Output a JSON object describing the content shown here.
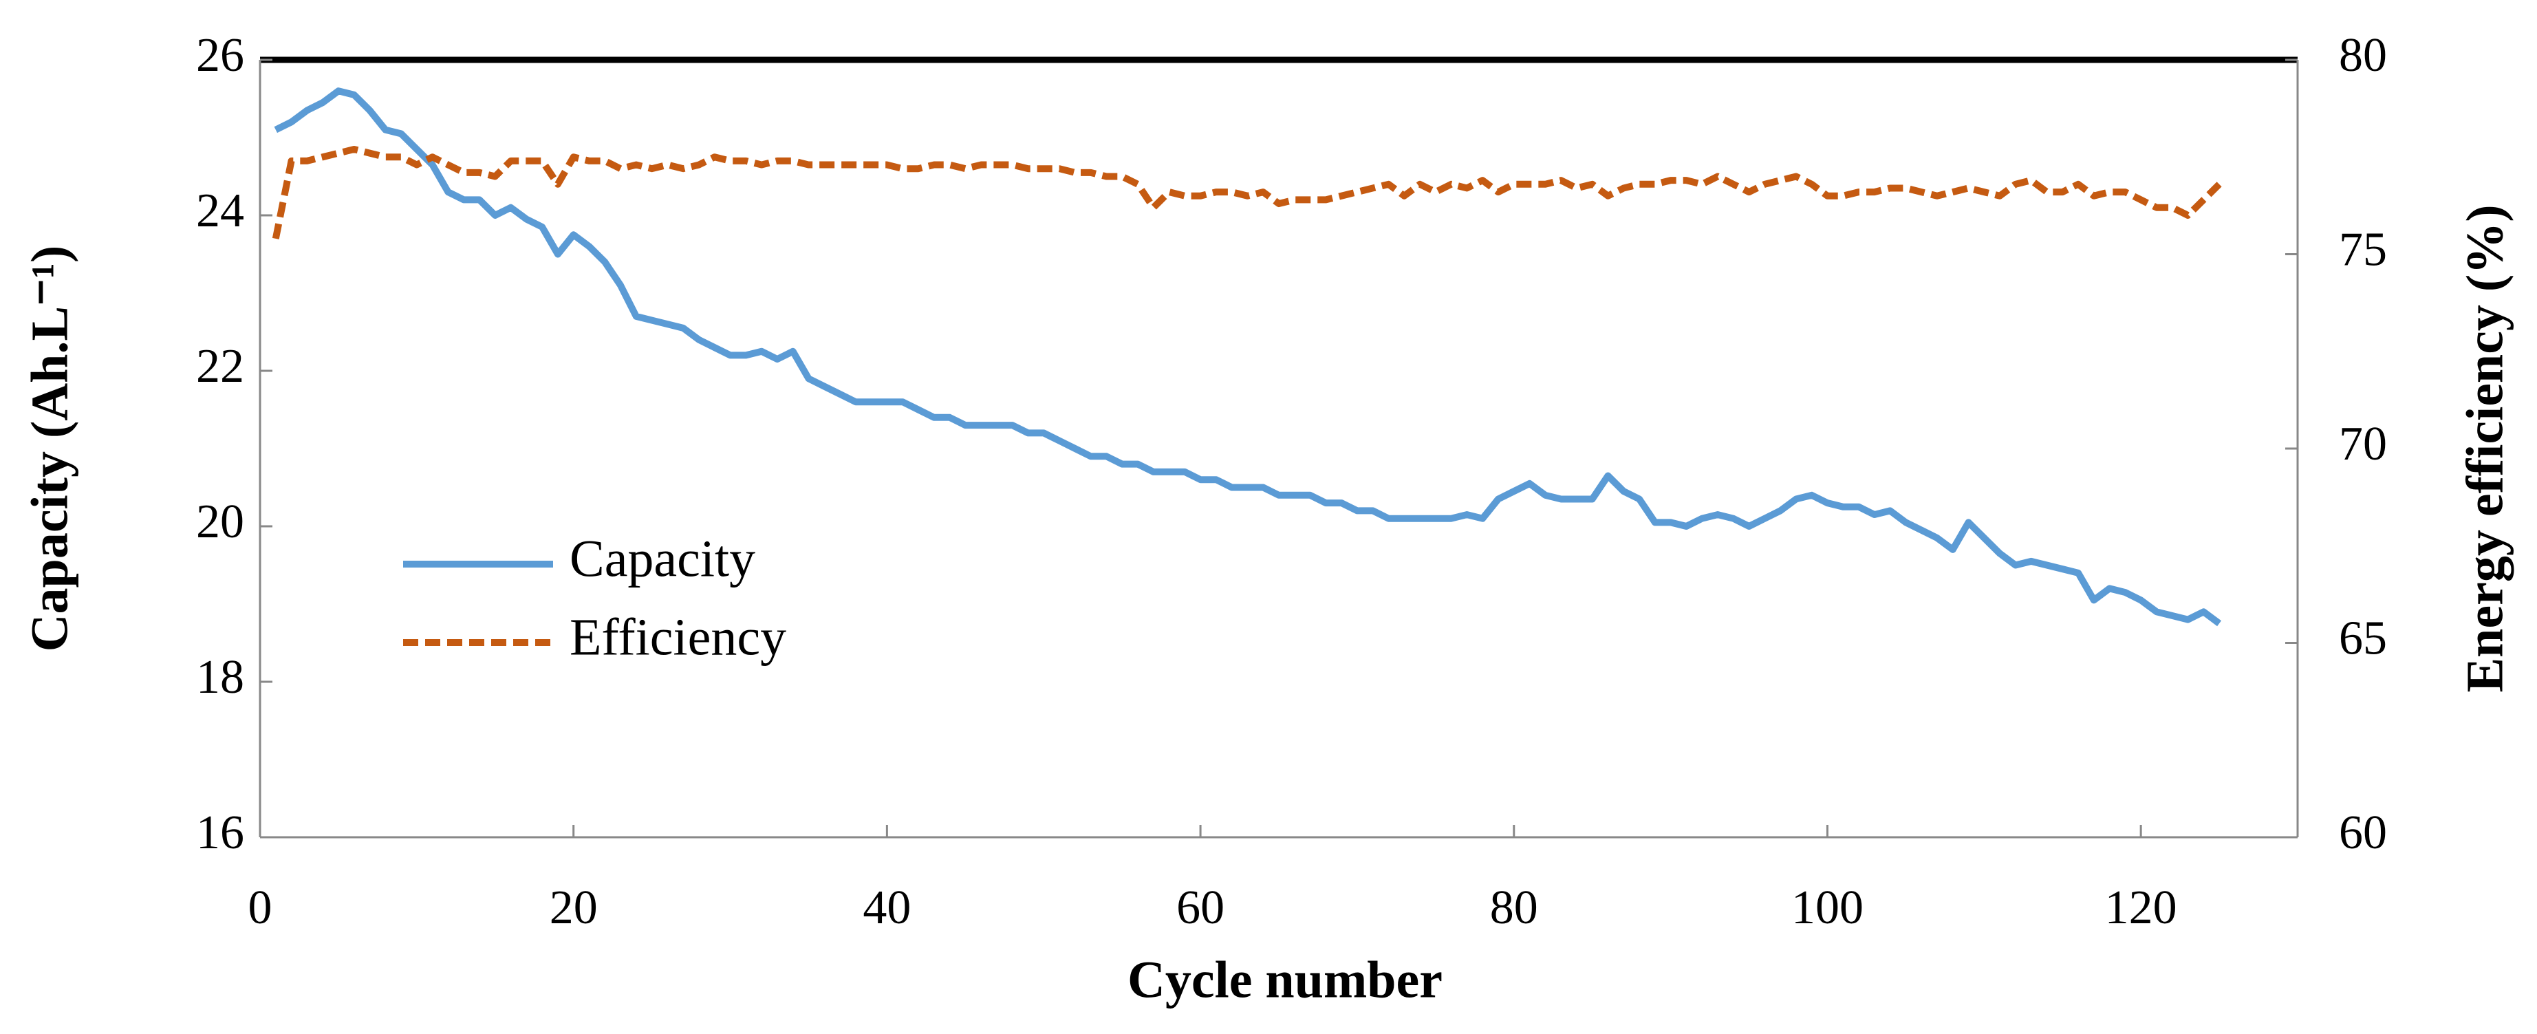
{
  "chart_data": {
    "type": "line",
    "xlabel": "Cycle number",
    "ylabel": "Capacity (Ah.L⁻¹)",
    "y2label": "Energy efficiency (%)",
    "x": [
      1,
      2,
      3,
      4,
      5,
      6,
      7,
      8,
      9,
      10,
      11,
      12,
      13,
      14,
      15,
      16,
      17,
      18,
      19,
      20,
      21,
      22,
      23,
      24,
      25,
      26,
      27,
      28,
      29,
      30,
      31,
      32,
      33,
      34,
      35,
      36,
      37,
      38,
      39,
      40,
      41,
      42,
      43,
      44,
      45,
      46,
      47,
      48,
      49,
      50,
      51,
      52,
      53,
      54,
      55,
      56,
      57,
      58,
      59,
      60,
      61,
      62,
      63,
      64,
      65,
      66,
      67,
      68,
      69,
      70,
      71,
      72,
      73,
      74,
      75,
      76,
      77,
      78,
      79,
      80,
      81,
      82,
      83,
      84,
      85,
      86,
      87,
      88,
      89,
      90,
      91,
      92,
      93,
      94,
      95,
      96,
      97,
      98,
      99,
      100,
      101,
      102,
      103,
      104,
      105,
      106,
      107,
      108,
      109,
      110,
      111,
      112,
      113,
      114,
      115,
      116,
      117,
      118,
      119,
      120,
      121,
      122,
      123,
      124,
      125
    ],
    "series": [
      {
        "name": "Capacity",
        "color": "#5b9bd5",
        "dash": false,
        "values": [
          25.1,
          25.2,
          25.35,
          25.45,
          25.6,
          25.55,
          25.35,
          25.1,
          25.05,
          24.85,
          24.65,
          24.3,
          24.2,
          24.2,
          24.0,
          24.1,
          23.95,
          23.85,
          23.5,
          23.75,
          23.6,
          23.4,
          23.1,
          22.7,
          22.65,
          22.6,
          22.55,
          22.4,
          22.3,
          22.2,
          22.2,
          22.25,
          22.15,
          22.25,
          21.9,
          21.8,
          21.7,
          21.6,
          21.6,
          21.6,
          21.6,
          21.5,
          21.4,
          21.4,
          21.3,
          21.3,
          21.3,
          21.3,
          21.2,
          21.2,
          21.1,
          21.0,
          20.9,
          20.9,
          20.8,
          20.8,
          20.7,
          20.7,
          20.7,
          20.6,
          20.6,
          20.5,
          20.5,
          20.5,
          20.4,
          20.4,
          20.4,
          20.3,
          20.3,
          20.2,
          20.2,
          20.1,
          20.1,
          20.1,
          20.1,
          20.1,
          20.15,
          20.1,
          20.35,
          20.45,
          20.55,
          20.4,
          20.35,
          20.35,
          20.35,
          20.65,
          20.45,
          20.35,
          20.05,
          20.05,
          20.0,
          20.1,
          20.15,
          20.1,
          20.0,
          20.1,
          20.2,
          20.35,
          20.4,
          20.3,
          20.25,
          20.25,
          20.15,
          20.2,
          20.05,
          19.95,
          19.85,
          19.7,
          20.05,
          19.85,
          19.65,
          19.5,
          19.55,
          19.5,
          19.45,
          19.4,
          19.05,
          19.2,
          19.15,
          19.05,
          18.9,
          18.85,
          18.8,
          18.9,
          18.75
        ]
      },
      {
        "name": "Efficiency",
        "color": "#c55a11",
        "dash": true,
        "axis": "y2",
        "values": [
          75.4,
          77.4,
          77.4,
          77.5,
          77.6,
          77.7,
          77.6,
          77.5,
          77.5,
          77.3,
          77.5,
          77.3,
          77.1,
          77.1,
          77.0,
          77.4,
          77.4,
          77.4,
          76.8,
          77.5,
          77.4,
          77.4,
          77.2,
          77.3,
          77.2,
          77.3,
          77.2,
          77.3,
          77.5,
          77.4,
          77.4,
          77.3,
          77.4,
          77.4,
          77.3,
          77.3,
          77.3,
          77.3,
          77.3,
          77.3,
          77.2,
          77.2,
          77.3,
          77.3,
          77.2,
          77.3,
          77.3,
          77.3,
          77.2,
          77.2,
          77.2,
          77.1,
          77.1,
          77.0,
          77.0,
          76.8,
          76.2,
          76.6,
          76.5,
          76.5,
          76.6,
          76.6,
          76.5,
          76.6,
          76.3,
          76.4,
          76.4,
          76.4,
          76.5,
          76.6,
          76.7,
          76.8,
          76.5,
          76.8,
          76.6,
          76.8,
          76.7,
          76.9,
          76.6,
          76.8,
          76.8,
          76.8,
          76.9,
          76.7,
          76.8,
          76.5,
          76.7,
          76.8,
          76.8,
          76.9,
          76.9,
          76.8,
          77.0,
          76.8,
          76.6,
          76.8,
          76.9,
          77.0,
          76.8,
          76.5,
          76.5,
          76.6,
          76.6,
          76.7,
          76.7,
          76.6,
          76.5,
          76.6,
          76.7,
          76.6,
          76.5,
          76.8,
          76.9,
          76.6,
          76.6,
          76.8,
          76.5,
          76.6,
          76.6,
          76.4,
          76.2,
          76.2,
          76.0,
          76.4,
          76.8
        ]
      }
    ],
    "xlim": [
      0,
      130
    ],
    "xticks": [
      0,
      20,
      40,
      60,
      80,
      100,
      120
    ],
    "ylim": [
      16,
      26
    ],
    "yticks": [
      16,
      18,
      20,
      22,
      24,
      26
    ],
    "y2lim": [
      60,
      80
    ],
    "y2ticks": [
      60,
      65,
      70,
      75,
      80
    ],
    "grid": false,
    "legend": "lower left"
  }
}
